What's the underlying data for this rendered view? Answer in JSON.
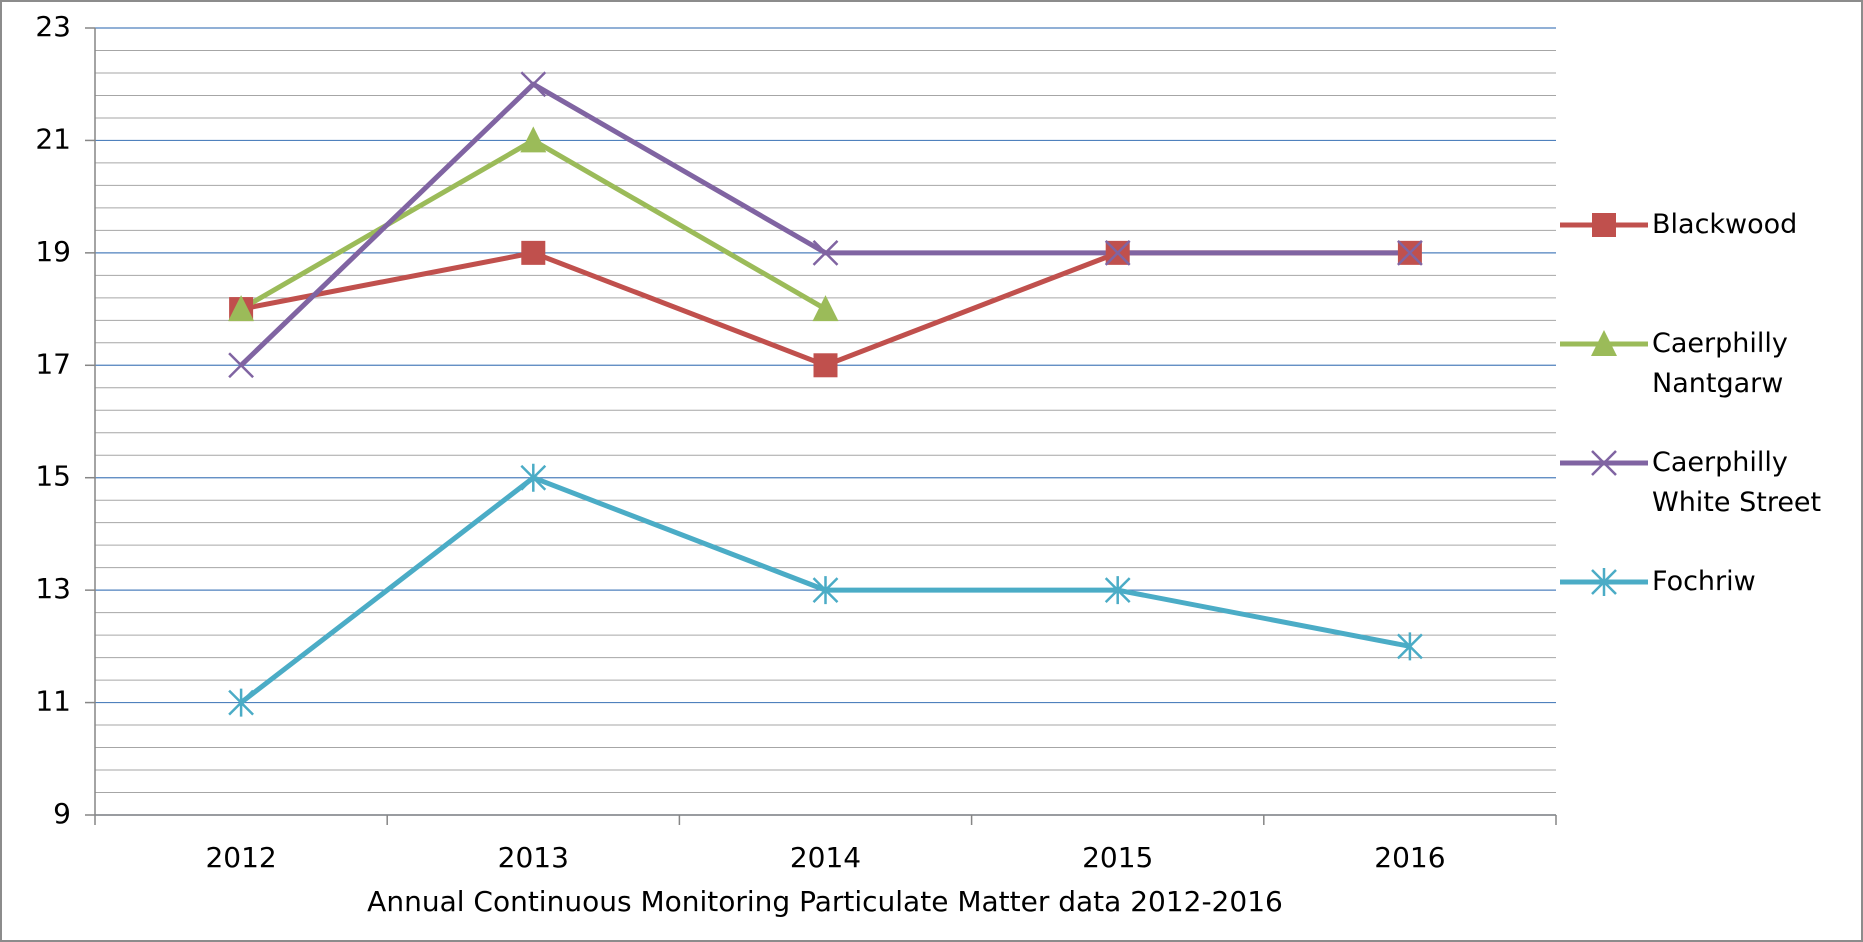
{
  "chart_data": {
    "type": "line",
    "x_label": "Annual Continuous Monitoring Particulate Matter data 2012-2016",
    "categories": [
      "2012",
      "2013",
      "2014",
      "2015",
      "2016"
    ],
    "series": [
      {
        "name": "Blackwood",
        "color": "#c0504d",
        "marker": "square",
        "values": [
          18,
          19,
          17,
          19,
          19
        ]
      },
      {
        "name": "Caerphilly Nantgarw",
        "color": "#9bbb59",
        "marker": "triangle",
        "values": [
          18,
          21,
          18,
          null,
          null
        ]
      },
      {
        "name": "Caerphilly White Street",
        "color": "#8064a2",
        "marker": "x",
        "values": [
          17,
          22,
          19,
          19,
          19
        ]
      },
      {
        "name": "Fochriw",
        "color": "#4bacc6",
        "marker": "star",
        "values": [
          11,
          15,
          13,
          13,
          12
        ]
      }
    ],
    "ylim": [
      9,
      23
    ],
    "yticks": [
      9,
      11,
      13,
      15,
      17,
      19,
      21,
      23
    ],
    "grid": true,
    "legend": "right"
  }
}
